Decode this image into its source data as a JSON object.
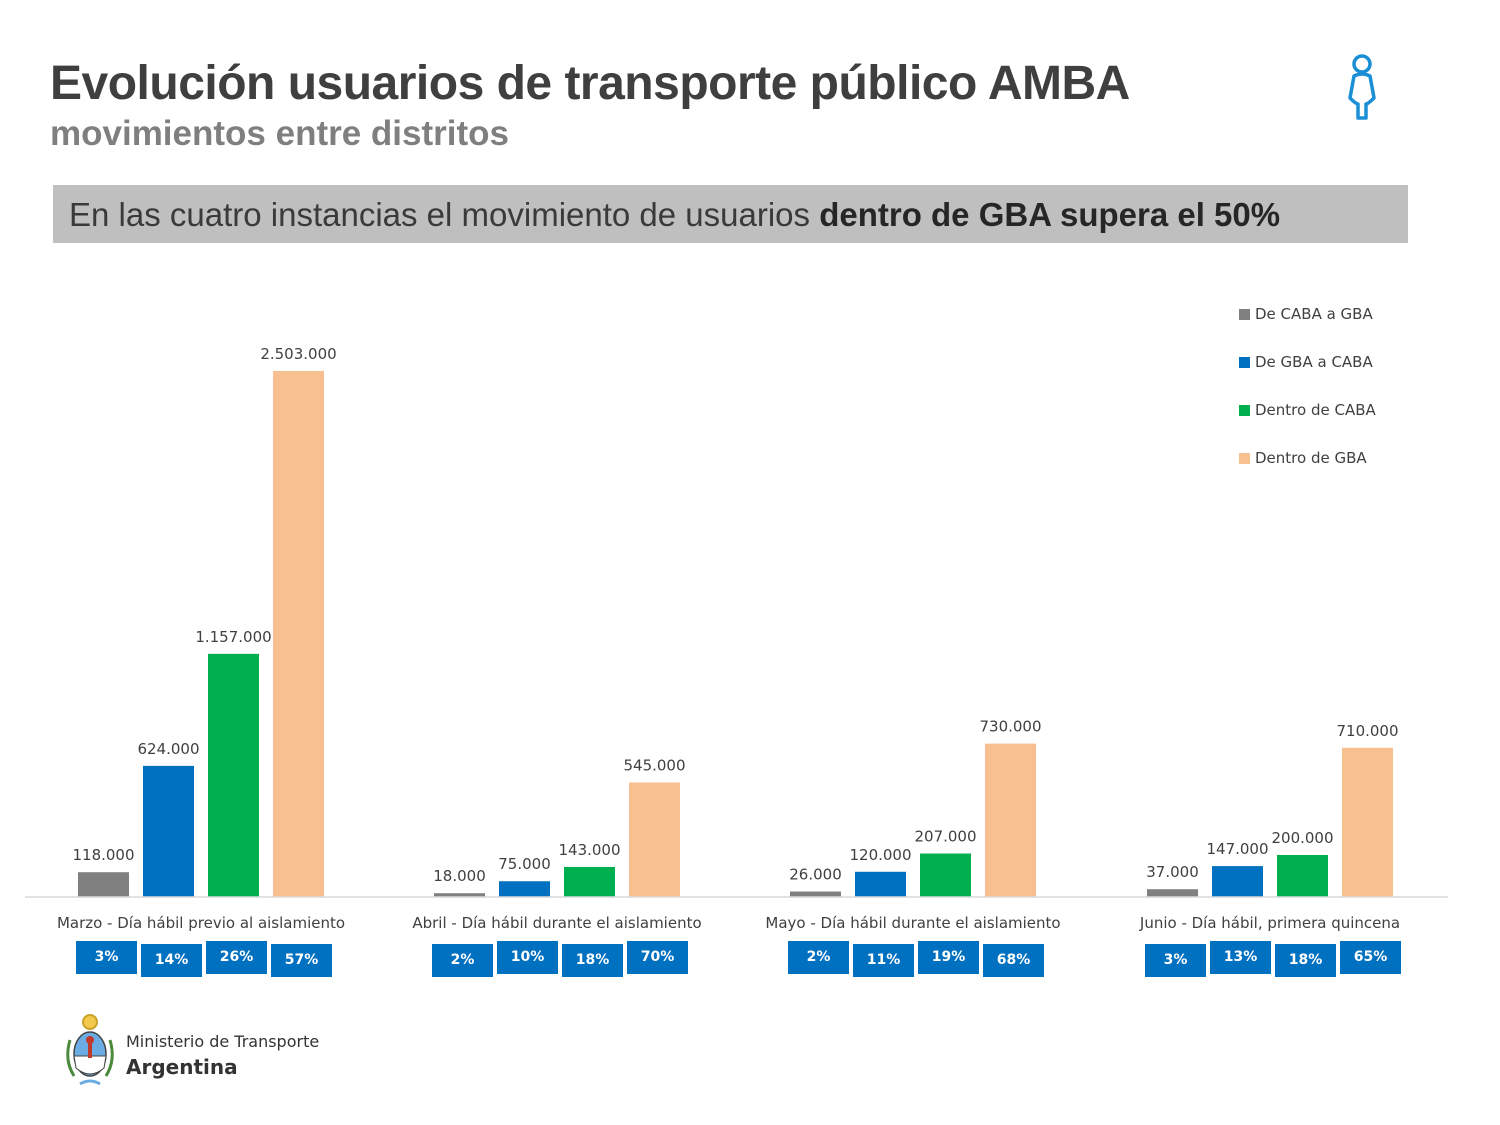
{
  "header": {
    "title": "Evolución usuarios de transporte público AMBA",
    "subtitle": "movimientos entre distritos",
    "icon": "person-icon"
  },
  "banner": {
    "text_regular": "En las cuatro instancias el movimiento de usuarios ",
    "text_bold": "dentro de GBA supera el 50%"
  },
  "chart_data": {
    "type": "bar",
    "categories": [
      "Marzo - Día hábil previo al aislamiento",
      "Abril - Día hábil durante el aislamiento",
      "Mayo - Día hábil durante el aislamiento",
      "Junio - Día hábil, primera quincena"
    ],
    "series": [
      {
        "name": "De CABA a GBA",
        "color": "#808080",
        "values": [
          118000,
          18000,
          26000,
          37000
        ],
        "labels": [
          "118.000",
          "18.000",
          "26.000",
          "37.000"
        ],
        "shares": [
          "3%",
          "2%",
          "2%",
          "3%"
        ]
      },
      {
        "name": "De GBA a CABA",
        "color": "#0070c0",
        "values": [
          624000,
          75000,
          120000,
          147000
        ],
        "labels": [
          "624.000",
          "75.000",
          "120.000",
          "147.000"
        ],
        "shares": [
          "14%",
          "10%",
          "11%",
          "13%"
        ]
      },
      {
        "name": "Dentro de CABA",
        "color": "#00b050",
        "values": [
          1157000,
          143000,
          207000,
          200000
        ],
        "labels": [
          "1.157.000",
          "143.000",
          "207.000",
          "200.000"
        ],
        "shares": [
          "26%",
          "18%",
          "19%",
          "18%"
        ]
      },
      {
        "name": "Dentro de GBA",
        "color": "#f8c090",
        "values": [
          2503000,
          545000,
          730000,
          710000
        ],
        "labels": [
          "2.503.000",
          "545.000",
          "730.000",
          "710.000"
        ],
        "shares": [
          "57%",
          "70%",
          "68%",
          "65%"
        ]
      }
    ],
    "ylim": [
      0,
      2503000
    ],
    "grid": false,
    "legend": "top-right",
    "badge_color": "#0070c0"
  },
  "footer": {
    "ministry": "Ministerio de Transporte",
    "country": "Argentina",
    "logo": "coat-of-arms-icon"
  }
}
